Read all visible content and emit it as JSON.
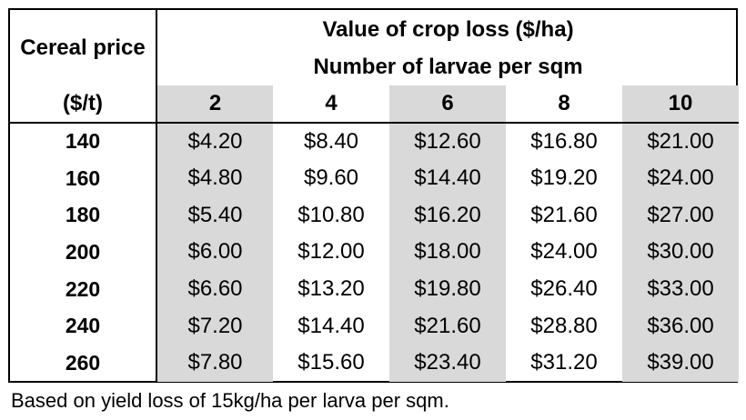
{
  "table": {
    "title": "Value of crop loss ($/ha)",
    "subtitle": "Number of larvae per sqm",
    "price_header_line1": "Cereal price",
    "price_header_line2": "($/t)",
    "shade_color": "#d9d9d9",
    "columns": [
      "2",
      "4",
      "6",
      "8",
      "10"
    ],
    "rows": [
      {
        "price": "140",
        "values": [
          "$4.20",
          "$8.40",
          "$12.60",
          "$16.80",
          "$21.00"
        ]
      },
      {
        "price": "160",
        "values": [
          "$4.80",
          "$9.60",
          "$14.40",
          "$19.20",
          "$24.00"
        ]
      },
      {
        "price": "180",
        "values": [
          "$5.40",
          "$10.80",
          "$16.20",
          "$21.60",
          "$27.00"
        ]
      },
      {
        "price": "200",
        "values": [
          "$6.00",
          "$12.00",
          "$18.00",
          "$24.00",
          "$30.00"
        ]
      },
      {
        "price": "220",
        "values": [
          "$6.60",
          "$13.20",
          "$19.80",
          "$26.40",
          "$33.00"
        ]
      },
      {
        "price": "240",
        "values": [
          "$7.20",
          "$14.40",
          "$21.60",
          "$28.80",
          "$36.00"
        ]
      },
      {
        "price": "260",
        "values": [
          "$7.80",
          "$15.60",
          "$23.40",
          "$31.20",
          "$39.00"
        ]
      }
    ]
  },
  "footnote": "Based on yield loss of 15kg/ha per larva per sqm."
}
